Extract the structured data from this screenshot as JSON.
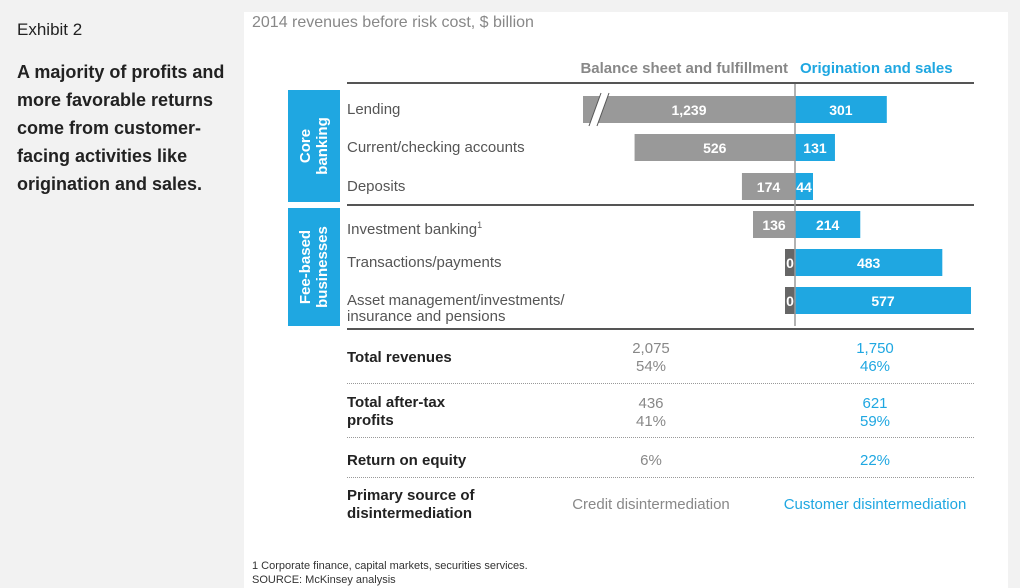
{
  "exhibit": "Exhibit 2",
  "headline": "A majority of profits and more favorable returns come from customer-facing activities like origination and sales.",
  "subtitle": "2014 revenues before risk cost, $ billion",
  "columns": {
    "left": "Balance sheet and fulfillment",
    "right": "Origination and sales"
  },
  "groups": [
    {
      "label_line1": "Core",
      "label_line2": "banking"
    },
    {
      "label_line1": "Fee-based",
      "label_line2": "businesses"
    }
  ],
  "rows": [
    {
      "label": "Lending",
      "footnote_mark": ""
    },
    {
      "label": "Current/checking accounts",
      "footnote_mark": ""
    },
    {
      "label": "Deposits",
      "footnote_mark": ""
    },
    {
      "label": "Investment banking",
      "footnote_mark": "1"
    },
    {
      "label": "Transactions/payments",
      "footnote_mark": ""
    },
    {
      "label_line1": "Asset management/investments/",
      "label_line2": "insurance and pensions",
      "footnote_mark": ""
    }
  ],
  "chart_data": {
    "type": "bar",
    "orientation": "diverging-horizontal",
    "categories": [
      "Lending",
      "Current/checking accounts",
      "Deposits",
      "Investment banking",
      "Transactions/payments",
      "Asset management/investments/insurance and pensions"
    ],
    "series": [
      {
        "name": "Balance sheet and fulfillment",
        "values": [
          1239,
          526,
          174,
          136,
          0,
          0
        ],
        "labels": [
          "1,239",
          "526",
          "174",
          "136",
          "0",
          "0"
        ],
        "color": "#999999"
      },
      {
        "name": "Origination and sales",
        "values": [
          301,
          131,
          44,
          214,
          483,
          577
        ],
        "labels": [
          "301",
          "131",
          "44",
          "214",
          "483",
          "577"
        ],
        "color": "#1fa7e1"
      }
    ],
    "axis_break": "Lending balance sheet bar truncated"
  },
  "summary": [
    {
      "label": "Total revenues",
      "left": "2,075",
      "left_pct": "54%",
      "right": "1,750",
      "right_pct": "46%"
    },
    {
      "label_line1": "Total after-tax",
      "label_line2": "profits",
      "left": "436",
      "left_pct": "41%",
      "right": "621",
      "right_pct": "59%"
    },
    {
      "label": "Return on equity",
      "left": "6%",
      "right": "22%"
    },
    {
      "label_line1": "Primary source of",
      "label_line2": "disintermediation",
      "left": "Credit disintermediation",
      "right": "Customer disintermediation"
    }
  ],
  "footnote": "1 Corporate finance, capital markets, securities services.",
  "source": "SOURCE: McKinsey analysis",
  "colors": {
    "accent": "#1fa7e1",
    "grey_bar": "#999999",
    "dark_bar": "#666666"
  }
}
